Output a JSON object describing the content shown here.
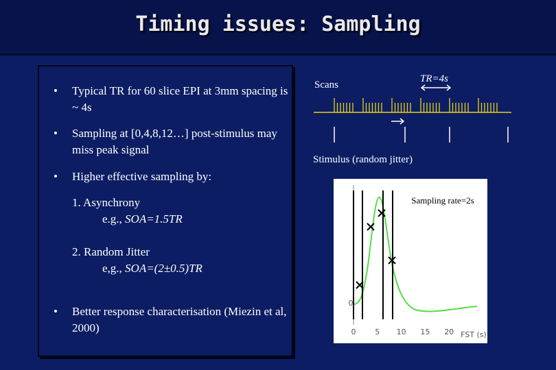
{
  "header": {
    "title": "Timing issues: Sampling"
  },
  "bullets": [
    {
      "text": "Typical TR for 60 slice EPI at 3mm spacing is ~ 4s"
    },
    {
      "text": "Sampling at [0,4,8,12…] post-stimulus may miss peak signal"
    },
    {
      "text": "Higher effective sampling by:",
      "items": [
        {
          "label": "1. Asynchrony",
          "prefix": "e.g., ",
          "example": "SOA=1.5TR"
        },
        {
          "label": "2. Random Jitter",
          "prefix": "e,g., ",
          "example": "SOA=(2±0.5)TR"
        }
      ]
    },
    {
      "text": "Better response characterisation (Miezin et al, 2000)"
    }
  ],
  "diagram": {
    "scans_label": "Scans",
    "tr_label": "TR=4s",
    "stimulus_label": "Stimulus (random jitter)"
  },
  "figure": {
    "annotation": "Sampling rate=2s",
    "y_tick": "0",
    "x_ticks": [
      "0",
      "5",
      "10",
      "15",
      "20"
    ],
    "x_label": "FST (s)"
  }
}
